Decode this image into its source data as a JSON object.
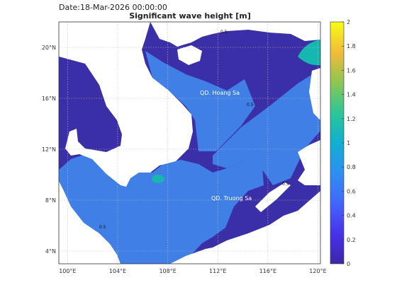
{
  "header": {
    "date_label": "Date:18-Mar-2026 00:00:00",
    "title": "Significant wave height [m]"
  },
  "map": {
    "lon_ticks": [
      "100°E",
      "104°E",
      "108°E",
      "112°E",
      "116°E",
      "120°E"
    ],
    "lat_ticks": [
      "4°N",
      "8°N",
      "12°N",
      "16°N",
      "20°N"
    ],
    "grid": true,
    "annotations": [
      "QD. Hoang Sa",
      "QD. Truong Sa"
    ],
    "contour_label": "0.5"
  },
  "colorbar": {
    "ticks": [
      "0",
      "0.2",
      "0.4",
      "0.6",
      "0.8",
      "1",
      "1.2",
      "1.4",
      "1.6",
      "1.8",
      "2"
    ],
    "min": 0,
    "max": 2,
    "stops": [
      "#3e26a8",
      "#4a4cf5",
      "#2f8ef3",
      "#10b0d0",
      "#2ac59b",
      "#7fcb58",
      "#e2b838",
      "#f9de2a",
      "#f9fb15"
    ]
  },
  "colors": {
    "deep": "#3b2fa8",
    "mid": "#3f7fe6",
    "high": "#16b7b0",
    "land": "#ffffff"
  }
}
